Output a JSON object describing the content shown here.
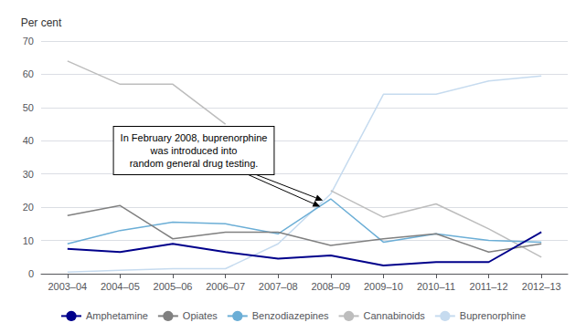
{
  "chart_data": {
    "type": "line",
    "categories": [
      "2003–04",
      "2004–05",
      "2005–06",
      "2006–07",
      "2007–08",
      "2008–09",
      "2009–10",
      "2010–11",
      "2011–12",
      "2012–13"
    ],
    "series": [
      {
        "name": "Amphetamine",
        "color": "#00008B",
        "values": [
          7.5,
          6.5,
          9.0,
          6.5,
          4.5,
          5.5,
          2.5,
          3.5,
          3.5,
          12.5
        ]
      },
      {
        "name": "Opiates",
        "color": "#808080",
        "values": [
          17.5,
          20.5,
          10.5,
          12.5,
          12.5,
          8.5,
          10.5,
          12.0,
          6.5,
          9.0
        ]
      },
      {
        "name": "Benzodiazepines",
        "color": "#6baed6",
        "values": [
          9.0,
          13.0,
          15.5,
          15.0,
          12.0,
          22.5,
          9.5,
          12.0,
          10.0,
          9.5
        ]
      },
      {
        "name": "Cannabinoids",
        "color": "#bdbdbd",
        "values": [
          64.0,
          57.0,
          57.0,
          45.0,
          null,
          25.0,
          17.0,
          21.0,
          13.5,
          5.0
        ]
      },
      {
        "name": "Buprenorphine",
        "color": "#c6dbef",
        "values": [
          0.5,
          1.0,
          1.5,
          1.5,
          9.0,
          24.0,
          54.0,
          54.0,
          58.0,
          59.5
        ]
      }
    ],
    "ylabel": "Per cent",
    "ylim": [
      0,
      70
    ],
    "yticks": [
      0,
      10,
      20,
      30,
      40,
      50,
      60,
      70
    ],
    "grid": true,
    "legend": "bottom",
    "annotation": "In February 2008, buprenorphine\nwas introduced into\nrandom general drug testing."
  }
}
